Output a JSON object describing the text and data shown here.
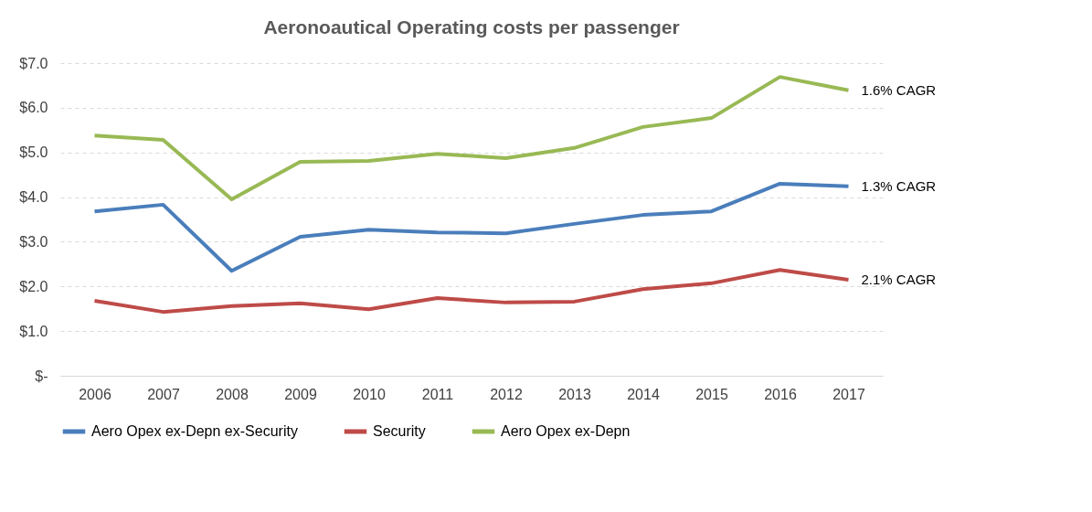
{
  "chart_data": {
    "type": "line",
    "title": "Aeronoautical Operating costs per passenger",
    "categories": [
      "2006",
      "2007",
      "2008",
      "2009",
      "2010",
      "2011",
      "2012",
      "2013",
      "2014",
      "2015",
      "2016",
      "2017"
    ],
    "series": [
      {
        "name": "Aero Opex ex-Depn ex-Security",
        "color": "#4a7ebb",
        "values": [
          3.68,
          3.83,
          2.35,
          3.11,
          3.27,
          3.21,
          3.19,
          3.4,
          3.6,
          3.68,
          4.3,
          4.24
        ]
      },
      {
        "name": "Security",
        "color": "#be4b48",
        "values": [
          1.68,
          1.43,
          1.56,
          1.62,
          1.49,
          1.74,
          1.64,
          1.66,
          1.94,
          2.07,
          2.37,
          2.15
        ]
      },
      {
        "name": "Aero Opex ex-Depn",
        "color": "#98b954",
        "values": [
          5.38,
          5.28,
          3.95,
          4.79,
          4.81,
          4.97,
          4.87,
          5.1,
          5.57,
          5.77,
          6.69,
          6.39
        ]
      }
    ],
    "ylim": [
      0,
      7
    ],
    "yticks": [
      {
        "value": 0,
        "label": "$-"
      },
      {
        "value": 1,
        "label": "$1.0"
      },
      {
        "value": 2,
        "label": "$2.0"
      },
      {
        "value": 3,
        "label": "$3.0"
      },
      {
        "value": 4,
        "label": "$4.0"
      },
      {
        "value": 5,
        "label": "$5.0"
      },
      {
        "value": 6,
        "label": "$6.0"
      },
      {
        "value": 7,
        "label": "$7.0"
      }
    ],
    "annotations": [
      {
        "text": "1.6% CAGR",
        "x": "2017",
        "y": 6.39
      },
      {
        "text": "1.3% CAGR",
        "x": "2017",
        "y": 4.24
      },
      {
        "text": "2.1% CAGR",
        "x": "2017",
        "y": 2.15
      }
    ],
    "grid": "y",
    "legend": "bottom",
    "marker": "none",
    "line_style": "solid"
  }
}
